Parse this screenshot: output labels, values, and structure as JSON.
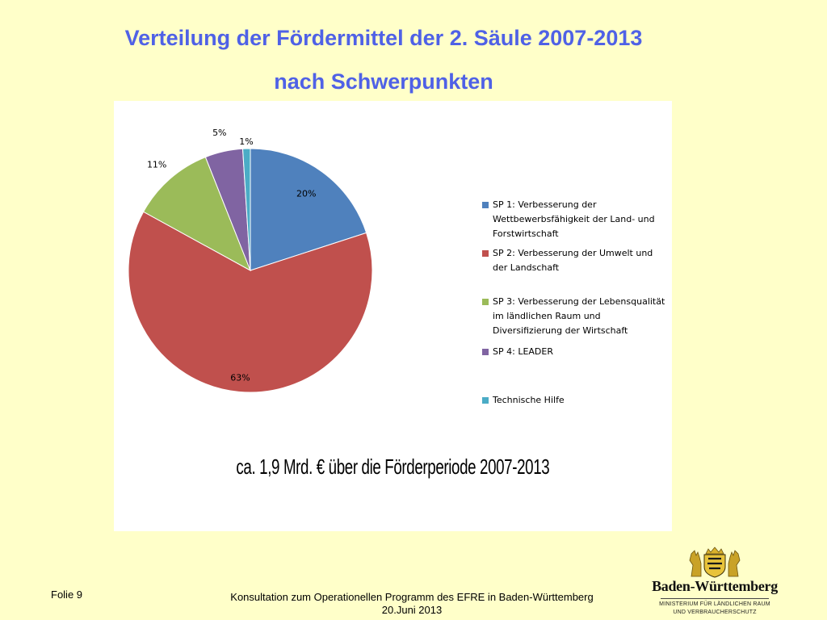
{
  "slide": {
    "title_line1": "Verteilung der Fördermittel der 2. Säule 2007-2013",
    "title_line2": "nach Schwerpunkten",
    "summary": "ca. 1,9 Mrd. € über die Förderperiode  2007-2013",
    "slide_number": "Folie 9",
    "footer_line1": "Konsultation zum Operationellen Programm des EFRE in Baden-Württemberg",
    "footer_line2": "20.Juni 2013"
  },
  "logo": {
    "name": "Baden-Württemberg",
    "subtitle_line1": "MINISTERIUM FÜR LÄNDLICHEN RAUM",
    "subtitle_line2": "UND VERBRAUCHERSCHUTZ",
    "crest_icon": "coat-of-arms-icon"
  },
  "chart_data": {
    "type": "pie",
    "unit": "%",
    "legend_position": "right",
    "series": [
      {
        "name": "SP 1: Verbesserung der Wettbewerbsfähigkeit der Land- und Forstwirtschaft",
        "value": 20,
        "label": "20%",
        "color": "#4f81bd"
      },
      {
        "name": "SP 2: Verbesserung der Umwelt und der Landschaft",
        "value": 63,
        "label": "63%",
        "color": "#c0504d"
      },
      {
        "name": "SP 3: Verbesserung der Lebensqualität im ländlichen Raum und Diversifizierung der Wirtschaft",
        "value": 11,
        "label": "11%",
        "color": "#9bbb59"
      },
      {
        "name": "SP 4: LEADER",
        "value": 5,
        "label": "5%",
        "color": "#8064a2"
      },
      {
        "name": "Technische Hilfe",
        "value": 1,
        "label": "1%",
        "color": "#4bacc6"
      }
    ]
  }
}
